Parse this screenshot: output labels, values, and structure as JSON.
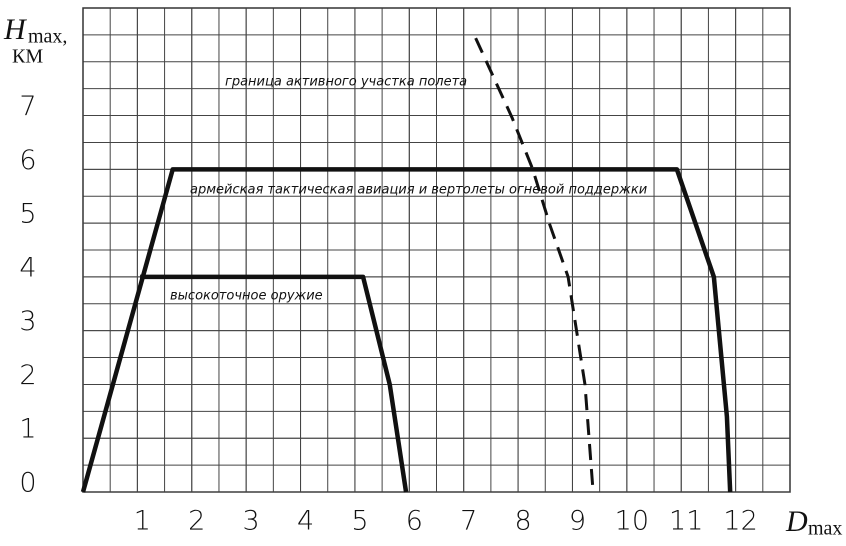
{
  "chart_data": {
    "type": "line",
    "ylabel": "H",
    "ylabel_index": "max,",
    "ylabel_unit": "КМ",
    "xlabel": "D",
    "xlabel_index": "max",
    "xlim": [
      0,
      13
    ],
    "ylim": [
      0,
      9
    ],
    "xticks": [
      1,
      2,
      3,
      4,
      5,
      6,
      7,
      8,
      9,
      10,
      11,
      12
    ],
    "yticks": [
      0,
      1,
      2,
      3,
      4,
      5,
      6,
      7
    ],
    "grid": true,
    "series": [
      {
        "name": "армейская тактическая авиация и вертолеты огневой поддержки",
        "color": "#111111",
        "dashed": false,
        "x": [
          0,
          1.65,
          10.92,
          11.6,
          11.84,
          11.9
        ],
        "values": [
          0,
          6,
          6,
          4,
          1.4,
          0
        ]
      },
      {
        "name": "высокоточное оружие",
        "color": "#111111",
        "dashed": false,
        "x": [
          1.05,
          5.15,
          5.64,
          5.94
        ],
        "values": [
          4,
          4,
          2,
          0
        ]
      },
      {
        "name": "граница активного участка полета",
        "color": "#111111",
        "dashed": true,
        "x": [
          7.22,
          7.89,
          8.27,
          8.58,
          8.92,
          9.23,
          9.38
        ],
        "values": [
          8.44,
          6.96,
          6,
          4.98,
          4,
          2,
          0
        ]
      }
    ]
  }
}
